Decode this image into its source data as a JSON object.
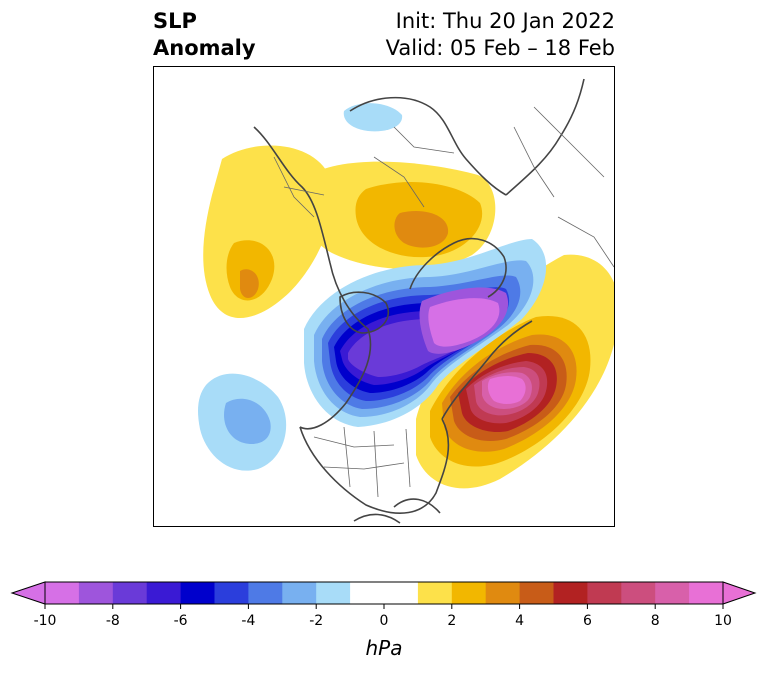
{
  "header": {
    "title_line1": "SLP",
    "title_line2": "Anomaly",
    "init_label": "Init: Thu 20 Jan 2022",
    "valid_label": "Valid: 05 Feb – 18 Feb"
  },
  "colorbar": {
    "units": "hPa",
    "range": [
      -10,
      10
    ],
    "step": 1,
    "tick_labels": [
      "-10",
      "-8",
      "-6",
      "-4",
      "-2",
      "0",
      "2",
      "4",
      "6",
      "8",
      "10"
    ],
    "tick_values": [
      -10,
      -8,
      -6,
      -4,
      -2,
      0,
      2,
      4,
      6,
      8,
      10
    ],
    "colors": [
      "#d670e6",
      "#9e55dc",
      "#6a3ad8",
      "#3a1ad4",
      "#0000cc",
      "#2b3edc",
      "#4e7ae6",
      "#78b0f0",
      "#a8dcf8",
      "#ffffff",
      "#ffffff",
      "#fde14a",
      "#f2b700",
      "#e08a10",
      "#c85c18",
      "#b22222",
      "#c03a52",
      "#cc4e7e",
      "#d860aa",
      "#e870d6"
    ],
    "under_color": "#d670e6",
    "over_color": "#e870d6"
  },
  "map": {
    "projection": "polar-stereographic-north",
    "field": "SLP anomaly (hPa)"
  }
}
